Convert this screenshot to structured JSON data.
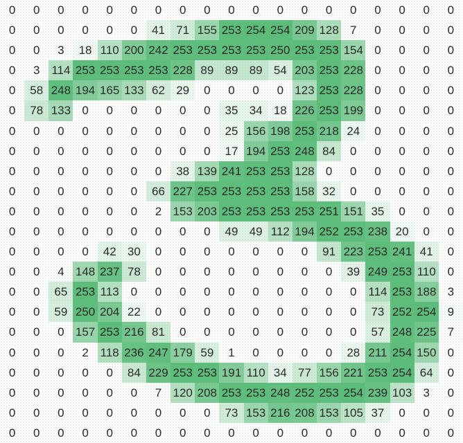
{
  "chart_data": {
    "type": "heatmap",
    "rows": 22,
    "cols": 19,
    "value_range": [
      0,
      254
    ],
    "colors": {
      "low": "#fdfdfd",
      "high": "#5cbd7a",
      "text": "#262626"
    },
    "values": [
      [
        0,
        0,
        0,
        0,
        0,
        0,
        0,
        0,
        0,
        0,
        0,
        0,
        0,
        0,
        0,
        0,
        0,
        0,
        0
      ],
      [
        0,
        0,
        0,
        0,
        0,
        0,
        41,
        71,
        155,
        253,
        254,
        254,
        209,
        128,
        7,
        0,
        0,
        0,
        0
      ],
      [
        0,
        0,
        3,
        18,
        110,
        200,
        242,
        253,
        253,
        253,
        253,
        250,
        253,
        253,
        154,
        0,
        0,
        0,
        0
      ],
      [
        0,
        3,
        114,
        253,
        253,
        253,
        253,
        228,
        89,
        89,
        89,
        54,
        203,
        253,
        228,
        0,
        0,
        0,
        0
      ],
      [
        0,
        58,
        248,
        194,
        165,
        133,
        62,
        29,
        0,
        0,
        0,
        0,
        123,
        253,
        228,
        0,
        0,
        0,
        0
      ],
      [
        0,
        78,
        133,
        0,
        0,
        0,
        0,
        0,
        0,
        35,
        34,
        18,
        226,
        253,
        199,
        0,
        0,
        0,
        0
      ],
      [
        0,
        0,
        0,
        0,
        0,
        0,
        0,
        0,
        0,
        25,
        156,
        198,
        253,
        218,
        24,
        0,
        0,
        0,
        0
      ],
      [
        0,
        0,
        0,
        0,
        0,
        0,
        0,
        0,
        0,
        17,
        194,
        253,
        248,
        84,
        0,
        0,
        0,
        0,
        0
      ],
      [
        0,
        0,
        0,
        0,
        0,
        0,
        0,
        38,
        139,
        241,
        253,
        253,
        128,
        0,
        0,
        0,
        0,
        0,
        0
      ],
      [
        0,
        0,
        0,
        0,
        0,
        0,
        66,
        227,
        253,
        253,
        253,
        253,
        158,
        32,
        0,
        0,
        0,
        0,
        0
      ],
      [
        0,
        0,
        0,
        0,
        0,
        0,
        2,
        153,
        203,
        253,
        253,
        253,
        253,
        251,
        151,
        35,
        0,
        0,
        0
      ],
      [
        0,
        0,
        0,
        0,
        0,
        0,
        0,
        0,
        0,
        49,
        49,
        112,
        194,
        252,
        253,
        238,
        20,
        0,
        0
      ],
      [
        0,
        0,
        0,
        0,
        42,
        30,
        0,
        0,
        0,
        0,
        0,
        0,
        0,
        91,
        223,
        253,
        241,
        41,
        0
      ],
      [
        0,
        0,
        4,
        148,
        237,
        78,
        0,
        0,
        0,
        0,
        0,
        0,
        0,
        0,
        39,
        249,
        253,
        110,
        0
      ],
      [
        0,
        0,
        65,
        253,
        113,
        0,
        0,
        0,
        0,
        0,
        0,
        0,
        0,
        0,
        0,
        114,
        253,
        188,
        3
      ],
      [
        0,
        0,
        59,
        250,
        204,
        22,
        0,
        0,
        0,
        0,
        0,
        0,
        0,
        0,
        0,
        73,
        252,
        254,
        9
      ],
      [
        0,
        0,
        0,
        157,
        253,
        216,
        81,
        0,
        0,
        0,
        0,
        0,
        0,
        0,
        0,
        57,
        248,
        225,
        7
      ],
      [
        0,
        0,
        0,
        2,
        118,
        236,
        247,
        179,
        59,
        1,
        0,
        0,
        0,
        0,
        28,
        211,
        254,
        150,
        0
      ],
      [
        0,
        0,
        0,
        0,
        0,
        84,
        229,
        253,
        253,
        191,
        110,
        34,
        77,
        156,
        221,
        253,
        254,
        64,
        0
      ],
      [
        0,
        0,
        0,
        0,
        0,
        0,
        7,
        120,
        208,
        253,
        253,
        248,
        252,
        253,
        254,
        239,
        103,
        3,
        0
      ],
      [
        0,
        0,
        0,
        0,
        0,
        0,
        0,
        0,
        0,
        73,
        153,
        216,
        208,
        153,
        105,
        37,
        0,
        0,
        0
      ],
      [
        0,
        0,
        0,
        0,
        0,
        0,
        0,
        0,
        0,
        0,
        0,
        0,
        0,
        0,
        0,
        0,
        0,
        0,
        0
      ]
    ]
  }
}
